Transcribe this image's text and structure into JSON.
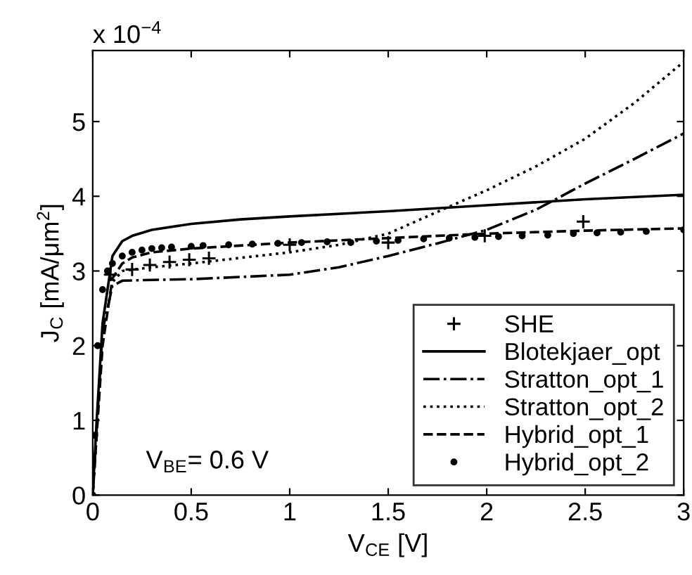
{
  "chart_data": {
    "type": "line",
    "xlabel": "V$_{CE}$ [V]",
    "ylabel": "J$_{C}$ [mA/μm$^{2}$]",
    "annotations": [
      "x 10$^{−4}$",
      "V$_{BE}$= 0.6 V"
    ],
    "xlim": [
      0,
      3
    ],
    "ylim": [
      0,
      5.95
    ],
    "xticks": [
      0,
      0.5,
      1,
      1.5,
      2,
      2.5,
      3
    ],
    "yticks": [
      0,
      1,
      2,
      3,
      4,
      5
    ],
    "grid": false,
    "legend": "bottom right",
    "series": [
      {
        "name": "SHE",
        "type": "scatter",
        "marker": "cross",
        "color": "#000000",
        "x": [
          0.09,
          0.2,
          0.29,
          0.39,
          0.49,
          0.59,
          1.0,
          1.5,
          1.99,
          2.49
        ],
        "values": [
          2.95,
          3.02,
          3.08,
          3.12,
          3.15,
          3.17,
          3.35,
          3.38,
          3.47,
          3.66
        ]
      },
      {
        "name": "Blotekjaer_opt",
        "line_style": "solid",
        "color": "#000000",
        "x": [
          0,
          0.02,
          0.05,
          0.1,
          0.15,
          0.2,
          0.3,
          0.5,
          0.75,
          1.0,
          1.5,
          2.0,
          2.5,
          3.0
        ],
        "values": [
          0,
          1.0,
          2.3,
          3.2,
          3.4,
          3.47,
          3.55,
          3.63,
          3.69,
          3.73,
          3.8,
          3.88,
          3.96,
          4.02
        ]
      },
      {
        "name": "Stratton_opt_1",
        "line_style": "dashdot",
        "color": "#000000",
        "x": [
          0,
          0.05,
          0.1,
          0.15,
          0.3,
          0.5,
          1.0,
          1.25,
          1.5,
          1.75,
          2.0,
          2.25,
          2.5,
          2.75,
          3.0
        ],
        "values": [
          0,
          2.2,
          2.8,
          2.87,
          2.88,
          2.89,
          2.95,
          3.05,
          3.2,
          3.37,
          3.55,
          3.82,
          4.17,
          4.5,
          4.84
        ]
      },
      {
        "name": "Stratton_opt_2",
        "line_style": "dotted",
        "color": "#000000",
        "x": [
          0,
          0.05,
          0.1,
          0.15,
          0.3,
          0.5,
          1.0,
          1.25,
          1.5,
          1.8,
          2.0,
          2.25,
          2.5,
          2.75,
          3.0
        ],
        "values": [
          0,
          2.1,
          2.85,
          3.0,
          3.05,
          3.1,
          3.25,
          3.35,
          3.5,
          3.85,
          4.08,
          4.4,
          4.77,
          5.25,
          5.8
        ]
      },
      {
        "name": "Hybrid_opt_1",
        "line_style": "dashed",
        "color": "#000000",
        "x": [
          0,
          0.05,
          0.1,
          0.15,
          0.2,
          0.3,
          0.5,
          1.0,
          1.5,
          2.0,
          2.5,
          3.0
        ],
        "values": [
          0,
          2.0,
          2.9,
          3.1,
          3.18,
          3.25,
          3.3,
          3.38,
          3.44,
          3.5,
          3.54,
          3.57
        ]
      },
      {
        "name": "Hybrid_opt_2",
        "type": "scatter",
        "marker": "circle",
        "color": "#000000",
        "x": [
          0,
          0.01,
          0.025,
          0.05,
          0.075,
          0.1,
          0.15,
          0.2,
          0.25,
          0.3,
          0.35,
          0.4,
          0.5,
          0.56,
          0.69,
          0.81,
          0.94,
          1.06,
          1.19,
          1.31,
          1.44,
          1.55,
          1.68,
          1.81,
          1.94,
          2.06,
          2.18,
          2.31,
          2.44,
          2.56,
          2.68,
          2.81,
          3.0
        ],
        "values": [
          0,
          0.8,
          2.0,
          2.75,
          3.0,
          3.1,
          3.2,
          3.25,
          3.28,
          3.3,
          3.31,
          3.32,
          3.33,
          3.34,
          3.35,
          3.36,
          3.37,
          3.38,
          3.39,
          3.38,
          3.4,
          3.41,
          3.43,
          3.44,
          3.45,
          3.46,
          3.47,
          3.48,
          3.5,
          3.51,
          3.52,
          3.53,
          3.55
        ]
      }
    ]
  }
}
